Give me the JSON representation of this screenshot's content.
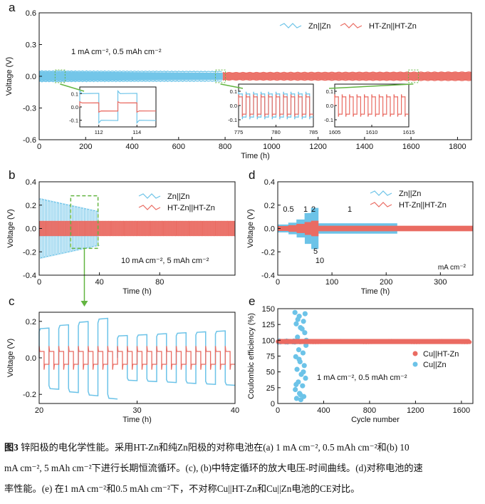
{
  "colors": {
    "blue": "#6cc3e8",
    "red": "#ea6b62",
    "green": "#63b541",
    "axis": "#111111"
  },
  "chart_data": [
    {
      "panel": "a",
      "type": "line",
      "panel_label": "a",
      "xlabel": "Time (h)",
      "ylabel": "Voltage (V)",
      "xlim": [
        0,
        1860
      ],
      "ylim": [
        -0.6,
        0.6
      ],
      "xticks": [
        0,
        200,
        400,
        600,
        800,
        1000,
        1200,
        1400,
        1600,
        1800
      ],
      "yticks": [
        "-0.6",
        "-0.3",
        "0.0",
        "0.3",
        "0.6"
      ],
      "condition": "1 mA cm⁻², 0.5 mAh cm⁻²",
      "series": [
        {
          "name": "Zn||Zn",
          "x_range": [
            0,
            790
          ],
          "amplitude_start": 0.05,
          "amplitude_end": 0.045
        },
        {
          "name": "HT-Zn||HT-Zn",
          "x_range": [
            0,
            1860
          ],
          "amplitude_start": 0.03,
          "amplitude_end": 0.035
        }
      ],
      "insets": [
        {
          "xlim": [
            111,
            115
          ],
          "xticks": [
            "112",
            "114"
          ],
          "yticks": [
            "0.1",
            "0.0",
            "-0.1"
          ],
          "source_x": 90
        },
        {
          "xlim": [
            775,
            785
          ],
          "xticks": [
            "775",
            "780",
            "785"
          ],
          "yticks": [
            "0.1",
            "0.0",
            "-0.1"
          ],
          "source_x": 780
        },
        {
          "xlim": [
            1605,
            1615
          ],
          "xticks": [
            "1605",
            "1610",
            "1615"
          ],
          "yticks": [
            "0.1",
            "0.0",
            "-0.1"
          ],
          "source_x": 1610
        }
      ]
    },
    {
      "panel": "b",
      "type": "line",
      "panel_label": "b",
      "xlabel": "Time (h)",
      "ylabel": "Voltage (V)",
      "xlim": [
        0,
        130
      ],
      "ylim": [
        -0.4,
        0.4
      ],
      "xticks": [
        0,
        40,
        80
      ],
      "yticks": [
        "-0.4",
        "-0.2",
        "0.0",
        "0.2",
        "0.4"
      ],
      "condition": "10 mA cm⁻², 5 mAh cm⁻²",
      "series": [
        {
          "name": "Zn||Zn",
          "x_range": [
            0,
            40
          ],
          "amplitude_start": 0.25,
          "amplitude_end": 0.14
        },
        {
          "name": "HT-Zn||HT-Zn",
          "x_range": [
            0,
            130
          ],
          "amplitude_start": 0.06,
          "amplitude_end": 0.05
        }
      ],
      "zoom_box_x": [
        20,
        40
      ]
    },
    {
      "panel": "c",
      "type": "line",
      "panel_label": "c",
      "xlabel": "Time (h)",
      "ylabel": "Voltage (V)",
      "xlim": [
        20,
        40
      ],
      "ylim": [
        -0.25,
        0.25
      ],
      "xticks": [
        20,
        30,
        40
      ],
      "yticks": [
        "-0.2",
        "0.0",
        "0.2"
      ],
      "series": [
        {
          "name": "Zn||Zn",
          "cycle_period_h": 2.0,
          "segments": [
            {
              "x": [
                20,
                28
              ],
              "plateau_start": 0.16,
              "plateau_end": 0.23
            },
            {
              "x": [
                28,
                40
              ],
              "plateau_start": 0.12,
              "plateau_end": 0.15
            }
          ]
        },
        {
          "name": "HT-Zn||HT-Zn",
          "cycle_period_h": 1.0,
          "plateau": 0.035,
          "spike": 0.065
        }
      ]
    },
    {
      "panel": "d",
      "type": "line",
      "panel_label": "d",
      "xlabel": "Time (h)",
      "ylabel": "Voltage (V)",
      "xlim": [
        0,
        360
      ],
      "ylim": [
        -0.4,
        0.4
      ],
      "xticks": [
        0,
        100,
        200,
        300
      ],
      "yticks": [
        "-0.4",
        "-0.2",
        "0.0",
        "0.2",
        "0.4"
      ],
      "unit_label": "mA cm⁻²",
      "rate_labels": [
        "0.5",
        "1",
        "2",
        "5",
        "10",
        "1"
      ],
      "series": [
        {
          "name": "Zn||Zn",
          "x_range": [
            0,
            220
          ]
        },
        {
          "name": "HT-Zn||HT-Zn",
          "x_range": [
            0,
            360
          ]
        }
      ]
    },
    {
      "panel": "e",
      "type": "scatter",
      "panel_label": "e",
      "xlabel": "Cycle number",
      "ylabel": "Coulombic efficiency (%)",
      "xlim": [
        0,
        1700
      ],
      "ylim": [
        0,
        150
      ],
      "xticks": [
        0,
        400,
        800,
        1200,
        1600
      ],
      "yticks": [
        0,
        25,
        50,
        75,
        100,
        125,
        150
      ],
      "condition": "1 mA cm⁻², 0.5 mAh cm⁻²",
      "series": [
        {
          "name": "Cu||HT-Zn",
          "x_range": [
            1,
            1680
          ],
          "ce": 98
        },
        {
          "name": "Cu||Zn",
          "stable_until": 200,
          "fail_range": [
            150,
            250
          ]
        }
      ]
    }
  ],
  "caption": {
    "label": "图3",
    "lines": [
      " 锌阳极的电化学性能。采用HT-Zn和纯Zn阳极的对称电池在(a) 1 mA cm⁻², 0.5 mAh cm⁻²和(b) 10",
      "mA cm⁻², 5 mAh cm⁻²下进行长期恒流循环。(c), (b)中特定循环的放大电压-时间曲线。(d)对称电池的速",
      "率性能。(e) 在1 mA cm⁻²和0.5 mAh cm⁻²下，不对称Cu||HT-Zn和Cu||Zn电池的CE对比。"
    ]
  }
}
